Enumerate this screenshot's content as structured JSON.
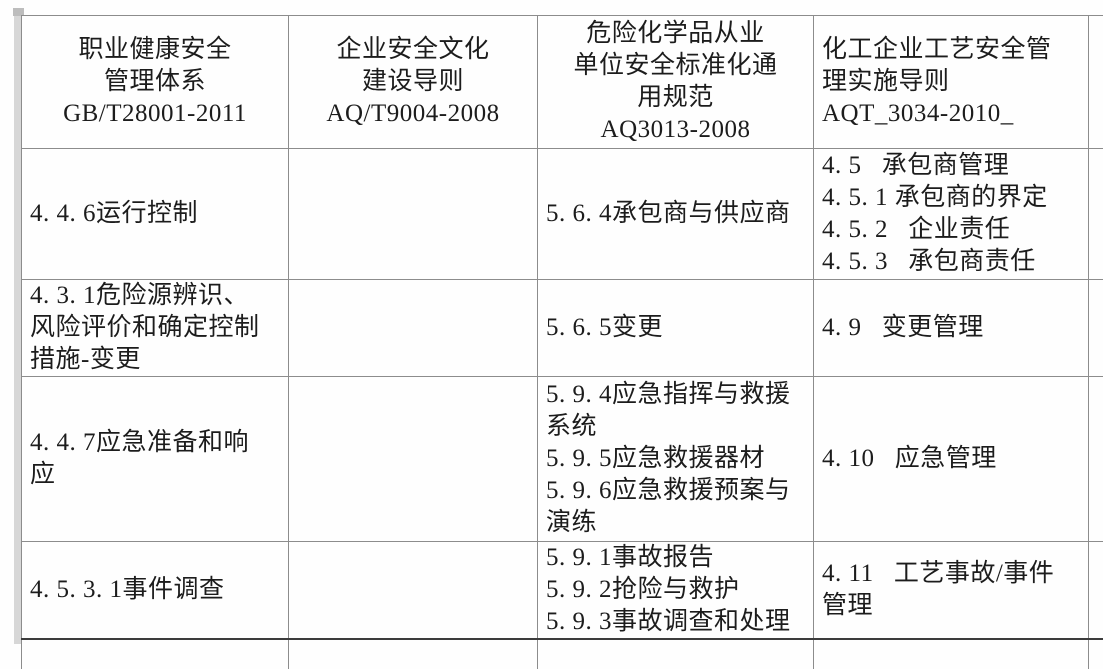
{
  "document": {
    "type": "standards-comparison-table",
    "text_color": "#1c1c1c",
    "border_color": "#8c8c8c",
    "background_color": "#fefefe"
  },
  "table": {
    "headers": [
      "职业健康安全\n管理体系\nGB/T28001-2011",
      "企业安全文化\n建设导则\nAQ/T9004-2008",
      "危险化学品从业\n单位安全标准化通\n用规范\nAQ3013-2008",
      "化工企业工艺安全管\n理实施导则\nAQT_3034-2010_",
      ""
    ],
    "rows": [
      {
        "cols": [
          "4. 4. 6运行控制",
          "",
          "5. 6. 4承包商与供应商",
          "4. 5   承包商管理\n4. 5. 1 承包商的界定\n4. 5. 2   企业责任\n4. 5. 3   承包商责任",
          ""
        ]
      },
      {
        "cols": [
          "4. 3. 1危险源辨识、\n风险评价和确定控制\n措施-变更",
          "",
          "5. 6. 5变更",
          "4. 9   变更管理",
          ""
        ]
      },
      {
        "cols": [
          "4. 4. 7应急准备和响\n应",
          "",
          "5. 9. 4应急指挥与救援\n系统\n5. 9. 5应急救援器材\n5. 9. 6应急救援预案与\n演练",
          "4. 10   应急管理",
          ""
        ]
      },
      {
        "cols": [
          "4. 5. 3. 1事件调查",
          "",
          "5. 9. 1事故报告\n5. 9. 2抢险与救护\n5. 9. 3事故调查和处理",
          "4. 11   工艺事故/事件\n管理",
          ""
        ]
      },
      {
        "cols": [
          "",
          "",
          "",
          "",
          ""
        ]
      }
    ]
  }
}
